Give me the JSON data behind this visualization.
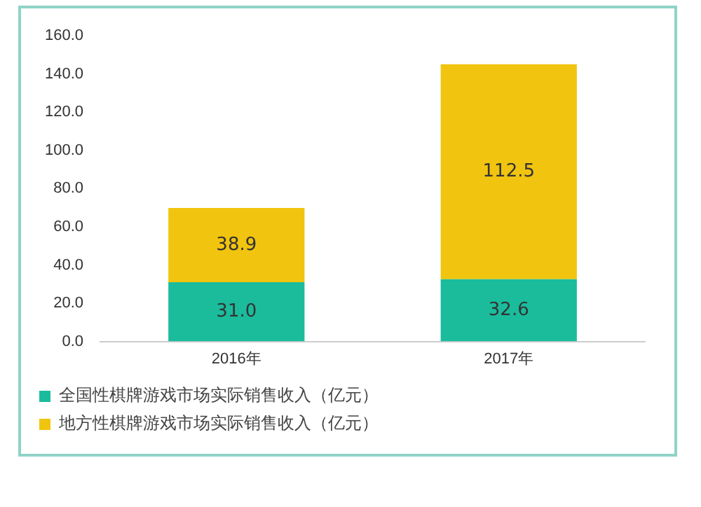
{
  "chart_data": {
    "type": "bar",
    "stacked": true,
    "categories": [
      "2016年",
      "2017年"
    ],
    "series": [
      {
        "name": "全国性棋牌游戏市场实际销售收入（亿元）",
        "color": "#1abc9c",
        "values": [
          31.0,
          32.6
        ],
        "value_labels": [
          "31.0",
          "32.6"
        ]
      },
      {
        "name": "地方性棋牌游戏市场实际销售收入（亿元）",
        "color": "#f1c40f",
        "values": [
          38.9,
          112.5
        ],
        "value_labels": [
          "38.9",
          "112.5"
        ]
      }
    ],
    "ylim": [
      0,
      160
    ],
    "yticks": [
      {
        "value": 0,
        "label": "0.0"
      },
      {
        "value": 20,
        "label": "20.0"
      },
      {
        "value": 40,
        "label": "40.0"
      },
      {
        "value": 60,
        "label": "60.0"
      },
      {
        "value": 80,
        "label": "80.0"
      },
      {
        "value": 100,
        "label": "100.0"
      },
      {
        "value": 120,
        "label": "120.0"
      },
      {
        "value": 140,
        "label": "140.0"
      },
      {
        "value": 160,
        "label": "160.0"
      }
    ],
    "grid": false,
    "legend": "bottom"
  }
}
